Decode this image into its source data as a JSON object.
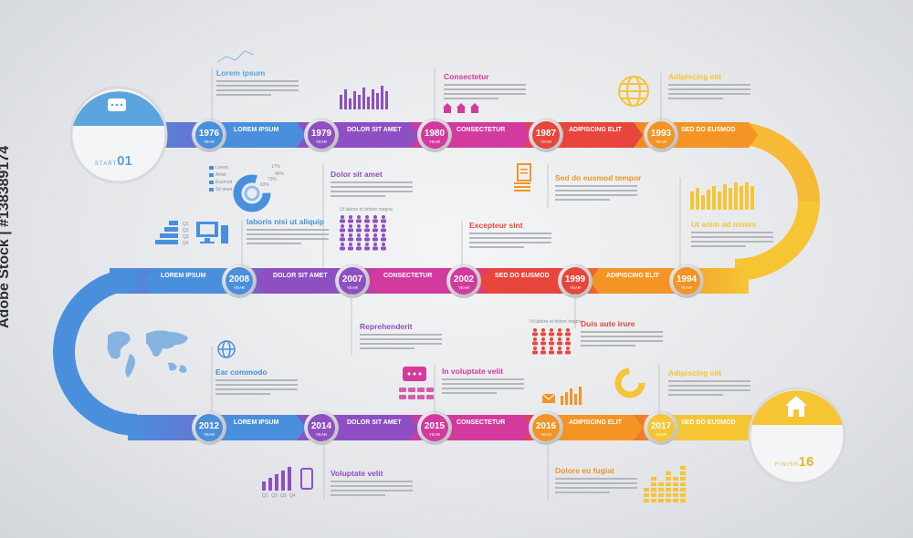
{
  "colors": {
    "blue": "#4a8fdc",
    "purple": "#8e4fc2",
    "magenta": "#d23a9e",
    "red": "#e8453c",
    "orange": "#f39424",
    "yellow": "#f6c534",
    "start_accent": "#5aa5de",
    "end_accent": "#e8b43a"
  },
  "start": {
    "label": "START",
    "number": "01",
    "icon": "speech-bubble-icon"
  },
  "end": {
    "label": "FINISH",
    "number": "16",
    "icon": "house-icon"
  },
  "year_sublabel": "YEAR",
  "rows": [
    {
      "stages": [
        {
          "year": "1976",
          "label": "LOREM IPSUM"
        },
        {
          "year": "1979",
          "label": "DOLOR SIT AMET"
        },
        {
          "year": "1980",
          "label": "CONSECTETUR"
        },
        {
          "year": "1987",
          "label": "ADIPISCING ELIT"
        },
        {
          "year": "1993",
          "label": "SED DO EUSMOD"
        }
      ]
    },
    {
      "stages": [
        {
          "year": "2008",
          "label": "LOREM IPSUM"
        },
        {
          "year": "2007",
          "label": "DOLOR SIT AMET"
        },
        {
          "year": "2002",
          "label": "CONSECTETUR"
        },
        {
          "year": "1999",
          "label": "SED DO EUSMOD"
        },
        {
          "year": "1994",
          "label": "ADIPISCING ELIT"
        }
      ]
    },
    {
      "stages": [
        {
          "year": "2012",
          "label": "LOREM IPSUM"
        },
        {
          "year": "2014",
          "label": "DOLOR SIT AMET"
        },
        {
          "year": "2015",
          "label": "CONSECTETUR"
        },
        {
          "year": "2016",
          "label": "ADIPISCING ELIT"
        },
        {
          "year": "2017",
          "label": "SED DO EUSMOD"
        }
      ]
    }
  ],
  "callouts": [
    {
      "title": "Lorem ipsum",
      "color": "#5aa5de"
    },
    {
      "title": "Consectetur",
      "color": "#d23a9e"
    },
    {
      "title": "Adipiscing elit",
      "color": "#f6c534"
    },
    {
      "title": "Dolor sit amet",
      "color": "#8e4fc2"
    },
    {
      "title": "Sed do eusmod tempor",
      "color": "#f39424"
    },
    {
      "title": "laboris nisi ut aliquip",
      "color": "#4a8fdc"
    },
    {
      "title": "Excepteur sint",
      "color": "#e8453c"
    },
    {
      "title": "Ut enim ad minim",
      "color": "#f6c534"
    },
    {
      "title": "Reprehenderit",
      "color": "#8e4fc2"
    },
    {
      "title": "Duis aute irure",
      "color": "#e8453c"
    },
    {
      "title": "Ear commodo",
      "color": "#4a8fdc"
    },
    {
      "title": "In voluptate velit",
      "color": "#d23a9e"
    },
    {
      "title": "Adipiscing elit",
      "color": "#f6c534"
    },
    {
      "title": "Voluptate velit",
      "color": "#8e4fc2"
    },
    {
      "title": "Dolore eu fugiat",
      "color": "#f39424"
    }
  ],
  "donut_legend": [
    {
      "name": "Lorem",
      "value": "17%"
    },
    {
      "name": "Amet",
      "value": "46%"
    },
    {
      "name": "Eusmod",
      "value": "73%"
    },
    {
      "name": "Sit amet",
      "value": "63%"
    }
  ],
  "quarter_labels": [
    "Q1",
    "Q2",
    "Q3",
    "Q4"
  ],
  "small_caption_1": "Ut labore et dolore magna",
  "small_caption_2": "Ut labore et dolore magna",
  "stock_id": "Adobe Stock | #138389174"
}
